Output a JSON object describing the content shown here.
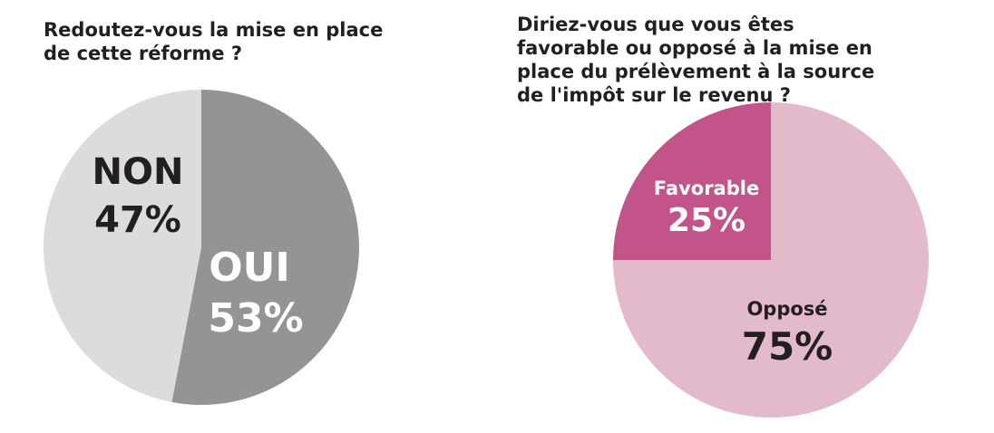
{
  "chart_data": [
    {
      "type": "pie",
      "title": "Redoutez-vous la mise en place de cette réforme ?",
      "slices": [
        {
          "label": "OUI",
          "value": 53,
          "value_label": "53%",
          "color": "#949494",
          "label_color": "#ffffff"
        },
        {
          "label": "NON",
          "value": 47,
          "value_label": "47%",
          "color": "#dcdcdc",
          "label_color": "#231f20"
        }
      ]
    },
    {
      "type": "pie",
      "title": "Diriez-vous que vous êtes favorable ou opposé à la mise en place du prélèvement à la source de l'impôt sur le revenu ?",
      "slices": [
        {
          "label": "Opposé",
          "value": 75,
          "value_label": "75%",
          "color": "#e3bacb",
          "label_color": "#231f20"
        },
        {
          "label": "Favorable",
          "value": 25,
          "value_label": "25%",
          "color": "#c25489",
          "label_color": "#ffffff"
        }
      ]
    }
  ]
}
